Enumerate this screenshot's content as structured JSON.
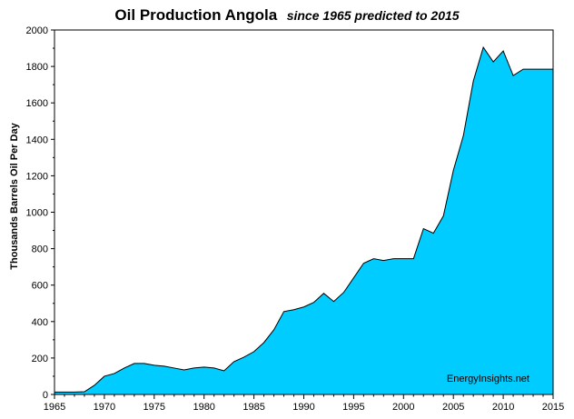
{
  "chart_data": {
    "type": "area",
    "title": "Oil Production Angola",
    "subtitle": "since 1965 predicted to 2015",
    "xlabel": "",
    "ylabel": "Thousands Barrels Oil Per Day",
    "xlim": [
      1965,
      2015
    ],
    "ylim": [
      0,
      2000
    ],
    "x_ticks": [
      "1965",
      "1970",
      "1975",
      "1980",
      "1985",
      "1990",
      "1995",
      "2000",
      "2005",
      "2010",
      "2015"
    ],
    "y_ticks": [
      "0",
      "200",
      "400",
      "600",
      "800",
      "1000",
      "1200",
      "1400",
      "1600",
      "1800",
      "2000"
    ],
    "grid": false,
    "legend": "none",
    "fill_color": "#00ccff",
    "line_color": "#000000",
    "annotation": "EnergyInsights.net",
    "x": [
      1965,
      1966,
      1967,
      1968,
      1969,
      1970,
      1971,
      1972,
      1973,
      1974,
      1975,
      1976,
      1977,
      1978,
      1979,
      1980,
      1981,
      1982,
      1983,
      1984,
      1985,
      1986,
      1987,
      1988,
      1989,
      1990,
      1991,
      1992,
      1993,
      1994,
      1995,
      1996,
      1997,
      1998,
      1999,
      2000,
      2001,
      2002,
      2003,
      2004,
      2005,
      2006,
      2007,
      2008,
      2009,
      2010,
      2011,
      2012,
      2013,
      2014,
      2015
    ],
    "values": [
      13,
      13,
      13,
      15,
      50,
      100,
      115,
      145,
      170,
      170,
      160,
      155,
      145,
      135,
      145,
      150,
      145,
      130,
      180,
      205,
      235,
      285,
      355,
      455,
      465,
      480,
      505,
      555,
      510,
      560,
      640,
      720,
      745,
      735,
      745,
      745,
      745,
      910,
      885,
      980,
      1230,
      1420,
      1720,
      1905,
      1825,
      1885,
      1750,
      1785,
      1785,
      1785,
      1785
    ]
  }
}
